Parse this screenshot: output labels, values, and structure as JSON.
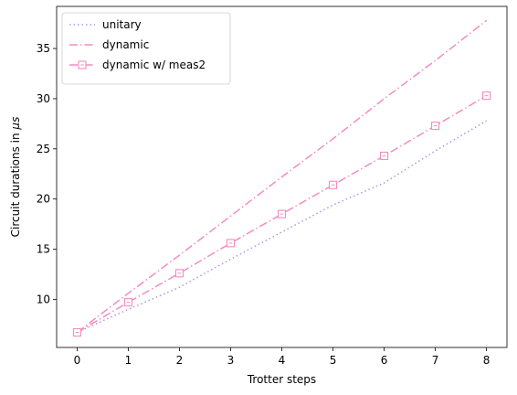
{
  "chart_data": {
    "type": "line",
    "xlabel": "Trotter steps",
    "ylabel_prefix": "Circuit durations in ",
    "ylabel_unit": "μs",
    "xlim": [
      -0.4,
      8.4
    ],
    "ylim": [
      5.2,
      39.2
    ],
    "xticks": [
      0,
      1,
      2,
      3,
      4,
      5,
      6,
      7,
      8
    ],
    "yticks": [
      10,
      15,
      20,
      25,
      30,
      35
    ],
    "grid": false,
    "legend_position": "top-left",
    "x": [
      0,
      1,
      2,
      3,
      4,
      5,
      6,
      7,
      8
    ],
    "series": [
      {
        "name": "unitary",
        "color": "#a89be0",
        "style": "dotted",
        "marker": "none",
        "values": [
          6.7,
          9.0,
          11.2,
          14.0,
          16.7,
          19.4,
          21.6,
          24.8,
          27.8
        ]
      },
      {
        "name": "dynamic",
        "color": "#f48cc0",
        "style": "dashdot",
        "marker": "none",
        "values": [
          6.7,
          10.6,
          14.4,
          18.3,
          22.2,
          26.0,
          30.0,
          33.8,
          37.8
        ]
      },
      {
        "name": "dynamic w/ meas2",
        "color": "#f48cc0",
        "style": "dashdot",
        "marker": "square",
        "values": [
          6.7,
          9.7,
          12.6,
          15.6,
          18.5,
          21.4,
          24.3,
          27.3,
          30.3
        ]
      }
    ]
  }
}
